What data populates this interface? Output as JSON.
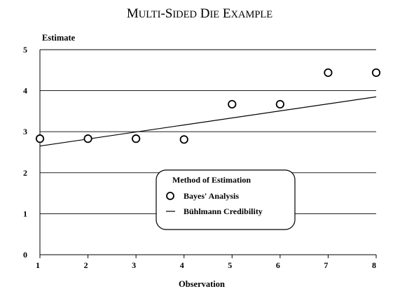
{
  "chart_data": {
    "type": "scatter",
    "title_parts": [
      {
        "text": "M",
        "size": "big"
      },
      {
        "text": "ULTI",
        "size": "small"
      },
      {
        "text": "-S",
        "size": "big"
      },
      {
        "text": "IDED",
        "size": "small"
      },
      {
        "text": " D",
        "size": "big"
      },
      {
        "text": "IE",
        "size": "small"
      },
      {
        "text": " E",
        "size": "big"
      },
      {
        "text": "XAMPLE",
        "size": "small"
      }
    ],
    "xlabel": "Observation",
    "ylabel": "Estimate",
    "xlim": [
      1,
      8
    ],
    "ylim": [
      0,
      5
    ],
    "xticks": [
      "1",
      "2",
      "3",
      "4",
      "5",
      "6",
      "7",
      "8"
    ],
    "yticks": [
      "0",
      "1",
      "2",
      "3",
      "4",
      "5"
    ],
    "grid": "horizontal",
    "legend": {
      "title": "Method of Estimation",
      "placement": "lower-center",
      "entries": [
        "Bayes' Analysis",
        "Bühlmann Credibility"
      ]
    },
    "series": [
      {
        "name": "Bayes' Analysis",
        "marker": "open-circle",
        "x": [
          1,
          2,
          3,
          4,
          5,
          6,
          7,
          8
        ],
        "y": [
          2.83,
          2.83,
          2.83,
          2.81,
          3.67,
          3.67,
          4.44,
          4.44
        ]
      },
      {
        "name": "Bühlmann Credibility",
        "marker": "line",
        "x": [
          1,
          8
        ],
        "y": [
          2.65,
          3.85
        ]
      }
    ]
  }
}
